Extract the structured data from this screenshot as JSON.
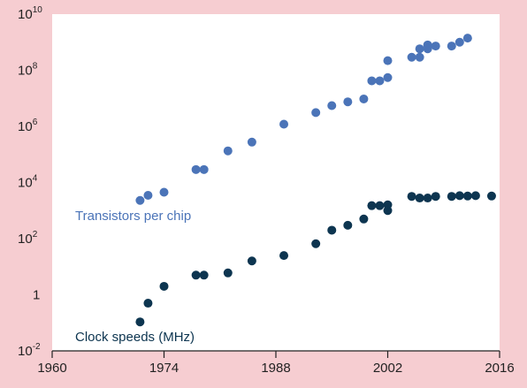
{
  "chart_data": {
    "type": "scatter",
    "title": "",
    "xlabel": "",
    "ylabel": "",
    "x_ticks": [
      "1960",
      "1974",
      "1988",
      "2002",
      "2016"
    ],
    "x_tick_values": [
      1960,
      1974,
      1988,
      2002,
      2016
    ],
    "xlim": [
      1960,
      2016
    ],
    "y_scale": "log",
    "ylim": [
      0.01,
      10000000000
    ],
    "y_ticks": [
      {
        "value": 0.01,
        "base": "10",
        "exp": "-2"
      },
      {
        "value": 1,
        "base": "1",
        "exp": ""
      },
      {
        "value": 100,
        "base": "10",
        "exp": "2"
      },
      {
        "value": 10000,
        "base": "10",
        "exp": "4"
      },
      {
        "value": 1000000,
        "base": "10",
        "exp": "6"
      },
      {
        "value": 100000000,
        "base": "10",
        "exp": "8"
      },
      {
        "value": 10000000000,
        "base": "10",
        "exp": "10"
      }
    ],
    "grid": false,
    "series": [
      {
        "name": "Transistors per chip",
        "color": "#4b74b8",
        "points": [
          [
            1971,
            2300
          ],
          [
            1972,
            3500
          ],
          [
            1974,
            4500
          ],
          [
            1978,
            29000
          ],
          [
            1979,
            29000
          ],
          [
            1982,
            134000
          ],
          [
            1985,
            275000
          ],
          [
            1989,
            1200000
          ],
          [
            1993,
            3100000
          ],
          [
            1995,
            5500000
          ],
          [
            1997,
            7500000
          ],
          [
            1999,
            9500000
          ],
          [
            2000,
            42000000
          ],
          [
            2001,
            42000000
          ],
          [
            2002,
            55000000
          ],
          [
            2002,
            220000000
          ],
          [
            2005,
            291000000
          ],
          [
            2006,
            291000000
          ],
          [
            2006,
            582000000
          ],
          [
            2007,
            800000000
          ],
          [
            2007,
            582000000
          ],
          [
            2008,
            731000000
          ],
          [
            2010,
            731000000
          ],
          [
            2011,
            1000000000
          ],
          [
            2012,
            1400000000
          ]
        ]
      },
      {
        "name": "Clock speeds (MHz)",
        "color": "#0d3550",
        "points": [
          [
            1971,
            0.108
          ],
          [
            1972,
            0.5
          ],
          [
            1974,
            2
          ],
          [
            1978,
            5
          ],
          [
            1979,
            5
          ],
          [
            1982,
            6
          ],
          [
            1985,
            16
          ],
          [
            1989,
            25
          ],
          [
            1993,
            66
          ],
          [
            1995,
            200
          ],
          [
            1997,
            300
          ],
          [
            1999,
            500
          ],
          [
            2000,
            1500
          ],
          [
            2001,
            1500
          ],
          [
            2002,
            1000
          ],
          [
            2002,
            1600
          ],
          [
            2005,
            3200
          ],
          [
            2006,
            2800
          ],
          [
            2007,
            2800
          ],
          [
            2008,
            3200
          ],
          [
            2010,
            3200
          ],
          [
            2011,
            3400
          ],
          [
            2012,
            3300
          ],
          [
            2013,
            3400
          ],
          [
            2015,
            3300
          ]
        ]
      }
    ],
    "annotations": [
      {
        "text": "Transistors per chip",
        "series": 0
      },
      {
        "text": "Clock speeds (MHz)",
        "series": 1
      }
    ]
  }
}
